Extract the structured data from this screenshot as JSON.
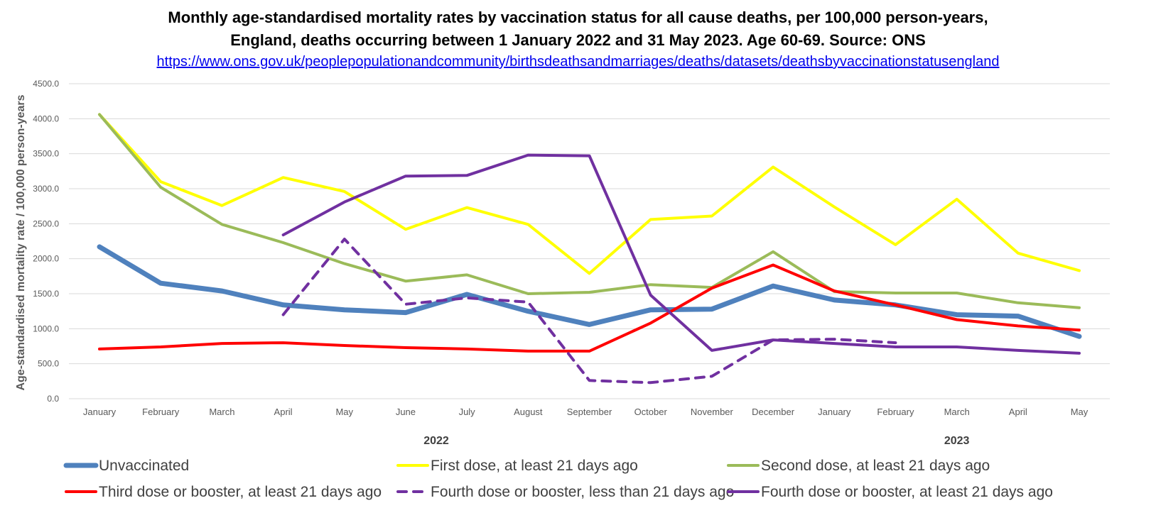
{
  "chart_data": {
    "type": "line",
    "title_line1": "Monthly age-standardised mortality rates by vaccination status for all cause deaths, per 100,000 person-years,",
    "title_line2": "England, deaths occurring between 1 January 2022 and 31 May  2023. Age 60-69. Source: ONS",
    "source_link": "https://www.ons.gov.uk/peoplepopulationandcommunity/birthsdeathsandmarriages/deaths/datasets/deathsbyvaccinationstatusengland",
    "ylabel": "Age-standardised mortality rate / 100,000 person-years",
    "xlabel": "",
    "ylim": [
      0,
      4500
    ],
    "yticks": [
      "0.0",
      "500.0",
      "1000.0",
      "1500.0",
      "2000.0",
      "2500.0",
      "3000.0",
      "3500.0",
      "4000.0",
      "4500.0"
    ],
    "ytick_values": [
      0,
      500,
      1000,
      1500,
      2000,
      2500,
      3000,
      3500,
      4000,
      4500
    ],
    "grid": true,
    "legend_position": "bottom",
    "categories": [
      "January",
      "February",
      "March",
      "April",
      "May",
      "June",
      "July",
      "August",
      "September",
      "October",
      "November",
      "December",
      "January",
      "February",
      "March",
      "April",
      "May"
    ],
    "year_groups": [
      {
        "label": "2022",
        "start": 0,
        "end": 11
      },
      {
        "label": "2023",
        "start": 12,
        "end": 16
      }
    ],
    "series": [
      {
        "name": "Unvaccinated",
        "color": "#4F81BD",
        "style": "solid",
        "weight": "thick",
        "values": [
          2170,
          1650,
          1540,
          1340,
          1270,
          1230,
          1490,
          1250,
          1060,
          1270,
          1280,
          1610,
          1410,
          1340,
          1200,
          1180,
          890
        ]
      },
      {
        "name": "First dose, at least 21 days ago",
        "color": "#FFFF00",
        "style": "solid",
        "weight": "normal",
        "values": [
          4060,
          3100,
          2760,
          3160,
          2960,
          2420,
          2730,
          2490,
          1790,
          2560,
          2610,
          3310,
          2740,
          2200,
          2850,
          2080,
          1830
        ]
      },
      {
        "name": "Second dose, at least 21 days ago",
        "color": "#9BBB59",
        "style": "solid",
        "weight": "normal",
        "values": [
          4060,
          3020,
          2490,
          2230,
          1930,
          1680,
          1770,
          1500,
          1520,
          1630,
          1590,
          2100,
          1530,
          1510,
          1510,
          1370,
          1300
        ]
      },
      {
        "name": "Third dose or booster, at least 21 days ago",
        "color": "#FF0000",
        "style": "solid",
        "weight": "normal",
        "values": [
          710,
          740,
          790,
          800,
          760,
          730,
          710,
          680,
          680,
          1080,
          1580,
          1910,
          1540,
          1340,
          1130,
          1040,
          980
        ]
      },
      {
        "name": "Fourth dose or booster, less than 21 days ago",
        "color": "#7030A0",
        "style": "dashed",
        "weight": "normal",
        "values": [
          null,
          null,
          null,
          1200,
          2280,
          1350,
          1440,
          1380,
          260,
          230,
          320,
          840,
          850,
          800,
          null,
          null,
          null
        ]
      },
      {
        "name": "Fourth dose or booster, at least 21 days ago",
        "color": "#7030A0",
        "style": "solid",
        "weight": "normal",
        "values": [
          null,
          null,
          null,
          2340,
          2810,
          3180,
          3190,
          3480,
          3470,
          1480,
          690,
          840,
          790,
          740,
          740,
          690,
          650
        ]
      }
    ]
  }
}
